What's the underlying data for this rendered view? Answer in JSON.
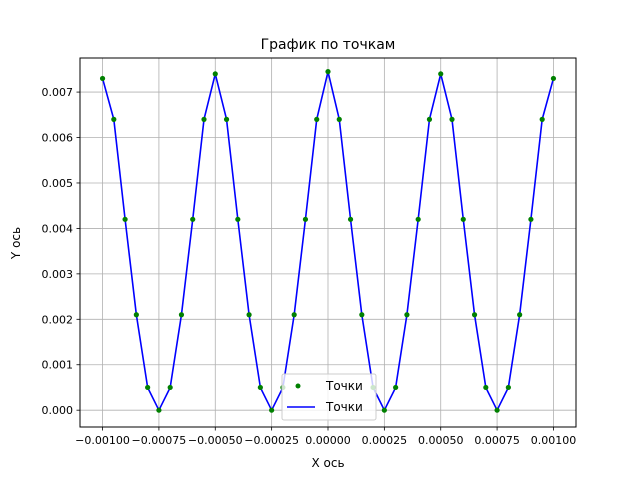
{
  "chart_data": {
    "type": "line",
    "title": "График по точкам",
    "xlabel": "X ось",
    "ylabel": "Y ось",
    "xlim": [
      -0.0011,
      0.0011
    ],
    "ylim": [
      -0.00037,
      0.00775
    ],
    "x_ticks": [
      -0.001,
      -0.00075,
      -0.0005,
      -0.00025,
      0.0,
      0.00025,
      0.0005,
      0.00075,
      0.001
    ],
    "x_tick_labels": [
      "−0.00100",
      "−0.00075",
      "−0.00050",
      "−0.00025",
      "0.00000",
      "0.00025",
      "0.00050",
      "0.00075",
      "0.00100"
    ],
    "y_ticks": [
      0.0,
      0.001,
      0.002,
      0.003,
      0.004,
      0.005,
      0.006,
      0.007
    ],
    "y_tick_labels": [
      "0.000",
      "0.001",
      "0.002",
      "0.003",
      "0.004",
      "0.005",
      "0.006",
      "0.007"
    ],
    "grid": true,
    "legend_position": "bottom-center",
    "x": [
      -0.001,
      -0.00095,
      -0.0009,
      -0.00085,
      -0.0008,
      -0.00075,
      -0.0007,
      -0.00065,
      -0.0006,
      -0.00055,
      -0.0005,
      -0.00045,
      -0.0004,
      -0.00035,
      -0.0003,
      -0.00025,
      -0.0002,
      -0.00015,
      -0.0001,
      -5e-05,
      0.0,
      5e-05,
      0.0001,
      0.00015,
      0.0002,
      0.00025,
      0.0003,
      0.00035,
      0.0004,
      0.00045,
      0.0005,
      0.00055,
      0.0006,
      0.00065,
      0.0007,
      0.00075,
      0.0008,
      0.00085,
      0.0009,
      0.00095,
      0.001
    ],
    "series": [
      {
        "name": "Точки",
        "kind": "markers",
        "color": "#008000",
        "values": [
          0.0073,
          0.0064,
          0.0042,
          0.0021,
          0.0005,
          0.0,
          0.0005,
          0.0021,
          0.0042,
          0.0064,
          0.0074,
          0.0064,
          0.0042,
          0.0021,
          0.0005,
          0.0,
          0.0005,
          0.0021,
          0.0042,
          0.0064,
          0.00745,
          0.0064,
          0.0042,
          0.0021,
          0.0005,
          0.0,
          0.0005,
          0.0021,
          0.0042,
          0.0064,
          0.0074,
          0.0064,
          0.0042,
          0.0021,
          0.0005,
          0.0,
          0.0005,
          0.0021,
          0.0042,
          0.0064,
          0.0073
        ]
      },
      {
        "name": "Точки",
        "kind": "line",
        "color": "#0000ff",
        "values": [
          0.0073,
          0.0064,
          0.0042,
          0.0021,
          0.0005,
          0.0,
          0.0005,
          0.0021,
          0.0042,
          0.0064,
          0.0074,
          0.0064,
          0.0042,
          0.0021,
          0.0005,
          0.0,
          0.0005,
          0.0021,
          0.0042,
          0.0064,
          0.00745,
          0.0064,
          0.0042,
          0.0021,
          0.0005,
          0.0,
          0.0005,
          0.0021,
          0.0042,
          0.0064,
          0.0074,
          0.0064,
          0.0042,
          0.0021,
          0.0005,
          0.0,
          0.0005,
          0.0021,
          0.0042,
          0.0064,
          0.0073
        ]
      }
    ]
  },
  "legend": {
    "items": [
      {
        "label": "Точки",
        "marker": "dot",
        "color": "#008000"
      },
      {
        "label": "Точки",
        "marker": "line",
        "color": "#0000ff"
      }
    ]
  }
}
